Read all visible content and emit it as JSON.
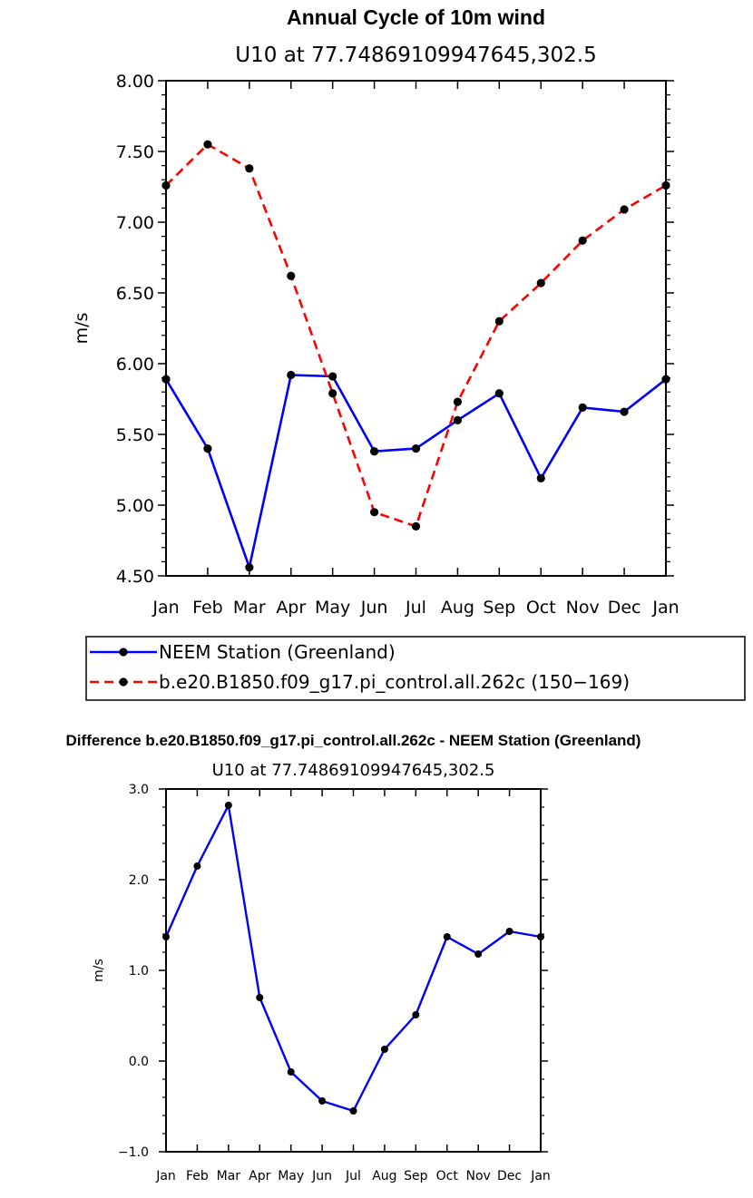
{
  "chart_data": [
    {
      "type": "line",
      "title": "Annual Cycle of 10m wind",
      "subtitle": "U10 at 77.74869109947645,302.5",
      "xlabel": "",
      "ylabel": "m/s",
      "categories": [
        "Jan",
        "Feb",
        "Mar",
        "Apr",
        "May",
        "Jun",
        "Jul",
        "Aug",
        "Sep",
        "Oct",
        "Nov",
        "Dec",
        "Jan"
      ],
      "ylim": [
        4.5,
        8.0
      ],
      "yticks": [
        "4.50",
        "5.00",
        "5.50",
        "6.00",
        "6.50",
        "7.00",
        "7.50",
        "8.00"
      ],
      "series": [
        {
          "name": "NEEM Station (Greenland)",
          "color": "#0000ff",
          "style": "solid",
          "values": [
            5.89,
            5.4,
            4.56,
            5.92,
            5.91,
            5.38,
            5.4,
            5.6,
            5.79,
            5.19,
            5.69,
            5.66,
            5.89
          ]
        },
        {
          "name": "b.e20.B1850.f09_g17.pi_control.all.262c (150−169)",
          "color": "#ff0000",
          "style": "dashed",
          "values": [
            7.26,
            7.55,
            7.38,
            6.62,
            5.79,
            4.95,
            4.85,
            5.73,
            6.3,
            6.57,
            6.87,
            7.09,
            7.26
          ]
        }
      ],
      "legend": "bottom"
    },
    {
      "type": "line",
      "title": "Difference b.e20.B1850.f09_g17.pi_control.all.262c - NEEM Station (Greenland)",
      "subtitle": "U10 at 77.74869109947645,302.5",
      "xlabel": "",
      "ylabel": "m/s",
      "categories": [
        "Jan",
        "Feb",
        "Mar",
        "Apr",
        "May",
        "Jun",
        "Jul",
        "Aug",
        "Sep",
        "Oct",
        "Nov",
        "Dec",
        "Jan"
      ],
      "ylim": [
        -1.0,
        3.0
      ],
      "yticks": [
        "−1.0",
        "0.0",
        "1.0",
        "2.0",
        "3.0"
      ],
      "series": [
        {
          "name": "Difference",
          "color": "#0000ff",
          "style": "solid",
          "values": [
            1.37,
            2.15,
            2.82,
            0.7,
            -0.12,
            -0.44,
            -0.55,
            0.13,
            0.51,
            1.37,
            1.18,
            1.43,
            1.37
          ]
        }
      ]
    }
  ]
}
